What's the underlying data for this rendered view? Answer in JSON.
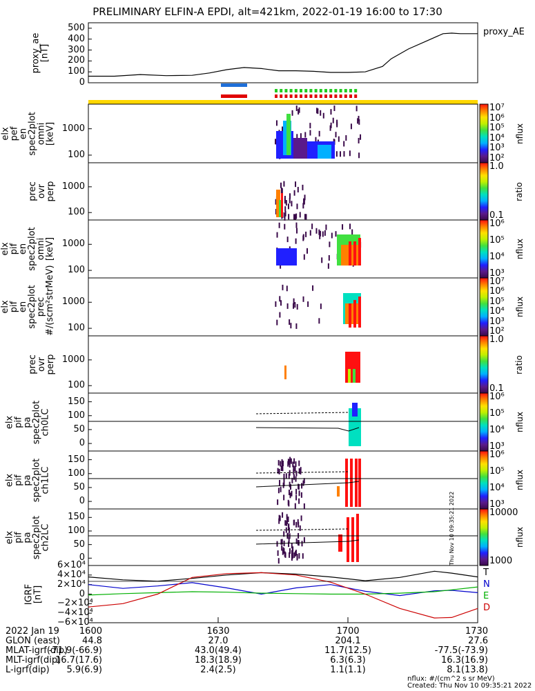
{
  "title": "PRELIMINARY ELFIN-A EPDI, alt=421km, 2022-01-19 16:00 to 17:30",
  "chart_data": [
    {
      "type": "line",
      "panel": "proxy_ae",
      "ylabel": "proxy_ae\n[nT]",
      "legend": "proxy_AE",
      "yticks": [
        "500",
        "400",
        "300",
        "200",
        "100",
        "0"
      ],
      "ylim": [
        0,
        550
      ],
      "x": [
        1600,
        1606,
        1612,
        1618,
        1624,
        1628,
        1632,
        1636,
        1640,
        1644,
        1648,
        1652,
        1656,
        1700,
        1704,
        1708,
        1710,
        1714,
        1718,
        1722,
        1724,
        1726,
        1730
      ],
      "values": [
        60,
        60,
        75,
        65,
        68,
        90,
        120,
        140,
        130,
        110,
        110,
        105,
        95,
        95,
        100,
        150,
        220,
        310,
        380,
        450,
        455,
        450,
        450
      ]
    },
    {
      "type": "heatmap",
      "panel": "elx_pef_en_spec2plot_omni",
      "ylabel": "elx\npef\nen\nspec2plot\nomni\n[keV]",
      "yticks": [
        "1000",
        "100"
      ],
      "colorbar": {
        "label": "nflux",
        "ticks": [
          "10⁷",
          "10⁶",
          "10⁵",
          "10⁴",
          "10³",
          "10²"
        ]
      }
    },
    {
      "type": "heatmap",
      "panel": "prec_ovr_perp_e",
      "ylabel": "prec\novr\nperp",
      "yticks": [
        "1000",
        "100"
      ],
      "colorbar": {
        "label": "ratio",
        "ticks": [
          "1.0",
          "0.1"
        ]
      }
    },
    {
      "type": "heatmap",
      "panel": "elx_pif_en_spec2plot_omni",
      "ylabel": "elx\npif\nen\nspec2plot\nomni\n[keV]",
      "yticks": [
        "1000",
        "100"
      ],
      "colorbar": {
        "label": "nflux",
        "ticks": [
          "10⁶",
          "10⁵",
          "10⁴",
          "10³"
        ]
      }
    },
    {
      "type": "heatmap",
      "panel": "elx_pif_en_spec2plot_prec",
      "ylabel": "elx\npif\nen\nspec2plot\nprec\n#/(scm²strMeV)",
      "yticks": [
        "1000",
        "100"
      ],
      "colorbar": {
        "label": "nflux",
        "ticks": [
          "10⁷",
          "10⁶",
          "10⁵",
          "10⁴",
          "10³",
          "10²"
        ]
      }
    },
    {
      "type": "heatmap",
      "panel": "prec_ovr_perp_i",
      "ylabel": "prec\novr\nperp",
      "yticks": [
        "1000",
        "100"
      ],
      "colorbar": {
        "label": "ratio",
        "ticks": [
          "1.0",
          "0.1"
        ]
      }
    },
    {
      "type": "heatmap",
      "panel": "elx_pif_pa_spec2plot_ch0LC",
      "ylabel": "elx\npif\npa\nspec2plot\nch0LC",
      "yticks": [
        "150",
        "100",
        "50",
        "0"
      ],
      "colorbar": {
        "label": "nflux",
        "ticks": [
          "10⁶",
          "10⁵",
          "10⁴",
          "10³"
        ]
      }
    },
    {
      "type": "heatmap",
      "panel": "elx_pif_pa_spec2plot_ch1LC",
      "ylabel": "elx\npif\npa\nspec2plot\nch1LC",
      "yticks": [
        "150",
        "100",
        "50",
        "0"
      ],
      "colorbar": {
        "label": "nflux",
        "ticks": [
          "10⁶",
          "10⁵",
          "10⁴",
          "10³"
        ]
      }
    },
    {
      "type": "heatmap",
      "panel": "elx_pif_pa_spec2plot_ch2LC",
      "ylabel": "elx\npif\npa\nspec2plot\nch2LC",
      "yticks": [
        "150",
        "100",
        "50",
        "0"
      ],
      "colorbar": {
        "label": "nflux",
        "ticks": [
          "10000",
          "1000"
        ]
      }
    },
    {
      "type": "line",
      "panel": "IGRF",
      "ylabel": "IGRF\n[nT]",
      "yticks": [
        "6×10⁴",
        "4×10⁴",
        "2×10⁴",
        "0",
        "−2×10⁴",
        "−4×10⁴",
        "−6×10⁴"
      ],
      "ylim": [
        -60000,
        60000
      ],
      "x": [
        1600,
        1608,
        1616,
        1624,
        1632,
        1640,
        1648,
        1656,
        1704,
        1712,
        1720,
        1724,
        1730
      ],
      "series": [
        {
          "name": "T",
          "color": "#000000",
          "values": [
            36000,
            30000,
            27000,
            33000,
            40000,
            45000,
            42000,
            36000,
            28000,
            35000,
            48000,
            44000,
            36000
          ]
        },
        {
          "name": "N",
          "color": "#0000cc",
          "values": [
            20000,
            12000,
            17000,
            24000,
            13000,
            0,
            13000,
            20000,
            6000,
            -3000,
            7000,
            8000,
            3000
          ]
        },
        {
          "name": "E",
          "color": "#00b000",
          "values": [
            -2000,
            1000,
            3000,
            5000,
            4000,
            2000,
            1000,
            0,
            0,
            2000,
            5000,
            9000,
            15000
          ]
        },
        {
          "name": "D",
          "color": "#cc0000",
          "values": [
            -27000,
            -20000,
            0,
            35000,
            43000,
            45000,
            40000,
            25000,
            0,
            -30000,
            -50000,
            -49000,
            -30000
          ]
        }
      ]
    }
  ],
  "footer": {
    "rows": [
      {
        "label": "2022 Jan 19",
        "c1": "1600",
        "c2": "1630",
        "c3": "1700",
        "c4": "1730"
      },
      {
        "label": "GLON (east)",
        "c1": "44.8",
        "c2": "27.0",
        "c3": "204.1",
        "c4": "27.6"
      },
      {
        "label": "MLAT-igrf(dip)",
        "c1": "-71.9(-66.9)",
        "c2": "43.0(49.4)",
        "c3": "11.7(12.5)",
        "c4": "-77.5(-73.9)"
      },
      {
        "label": "MLT-igrf(dip)",
        "c1": "16.7(17.6)",
        "c2": "18.3(18.9)",
        "c3": "6.3(6.3)",
        "c4": "16.3(16.9)"
      },
      {
        "label": "L-igrf(dip)",
        "c1": "5.9(6.9)",
        "c2": "2.4(2.5)",
        "c3": "1.1(1.1)",
        "c4": "8.1(13.8)"
      }
    ],
    "units_note": "nflux: #/(cm^2 s sr MeV)",
    "created": "Created: Thu Nov 10 09:35:21 2022",
    "side_stamp": "Thu Nov 10 09:35:21 2022"
  }
}
